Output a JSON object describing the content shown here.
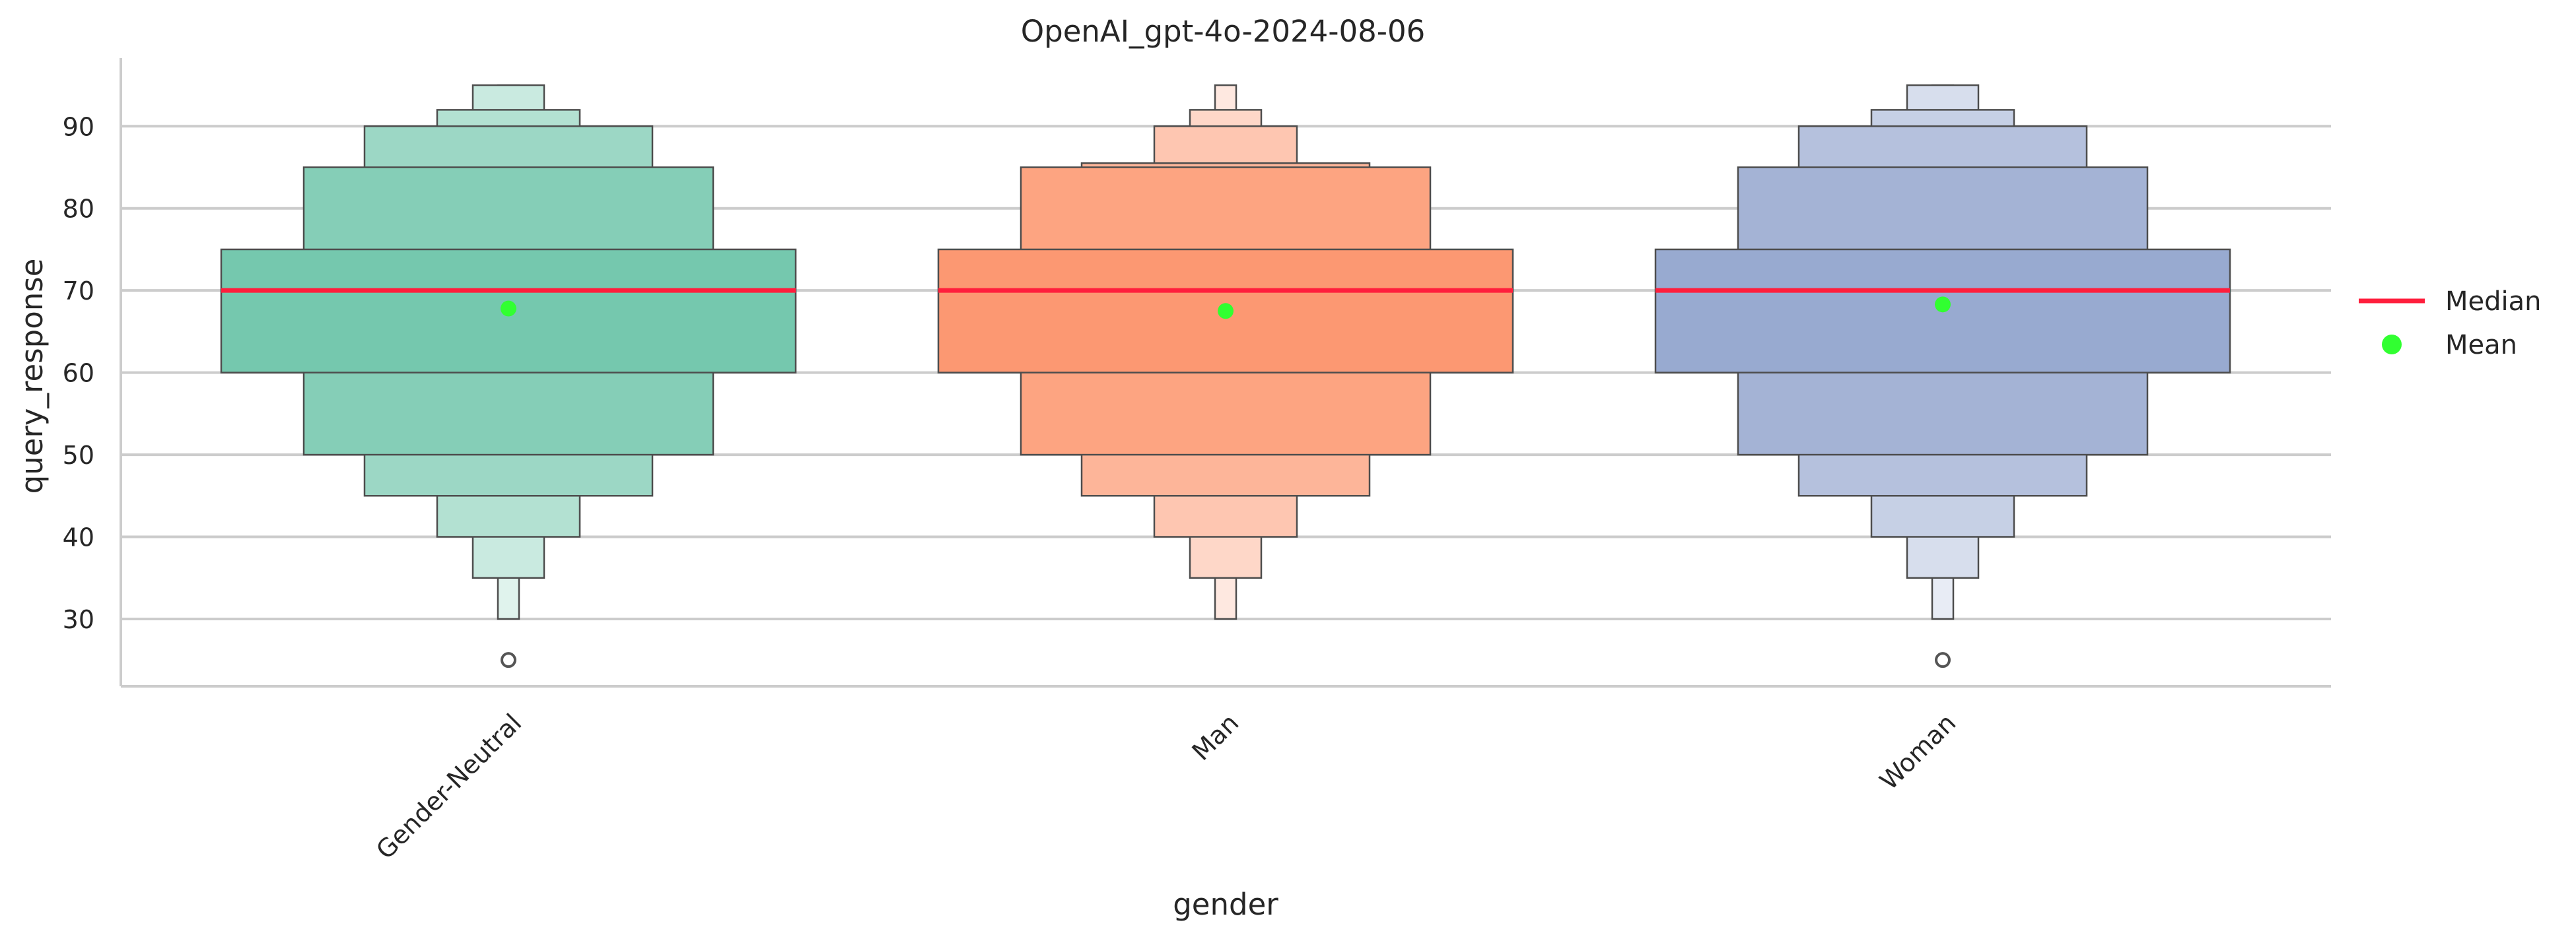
{
  "chart_data": {
    "type": "boxen",
    "title": "OpenAI_gpt-4o-2024-08-06",
    "xlabel": "gender",
    "ylabel": "query_response",
    "ylim": [
      21.8,
      98.3
    ],
    "yticks": [
      30,
      40,
      50,
      60,
      70,
      80,
      90
    ],
    "grid": "horizontal",
    "legend_position": "right",
    "categories": [
      "Gender-Neutral",
      "Man",
      "Woman"
    ],
    "colors": [
      "#66c2a5",
      "#fc8d62",
      "#8da0cb"
    ],
    "median_color": "#ff1e3c",
    "mean_color": "#31ff31",
    "series": [
      {
        "category": "Gender-Neutral",
        "median": 70,
        "mean": 67.8,
        "levels": [
          {
            "low": 60,
            "high": 75
          },
          {
            "low": 50,
            "high": 85
          },
          {
            "low": 45,
            "high": 90
          },
          {
            "low": 40,
            "high": 92
          },
          {
            "low": 35,
            "high": 95
          },
          {
            "low": 30,
            "high": 95
          }
        ],
        "outliers": [
          25
        ]
      },
      {
        "category": "Man",
        "median": 70,
        "mean": 67.5,
        "levels": [
          {
            "low": 60,
            "high": 75
          },
          {
            "low": 50,
            "high": 85
          },
          {
            "low": 45,
            "high": 85.5
          },
          {
            "low": 40,
            "high": 90
          },
          {
            "low": 35,
            "high": 92
          },
          {
            "low": 30,
            "high": 95
          }
        ],
        "outliers": []
      },
      {
        "category": "Woman",
        "median": 70,
        "mean": 68.3,
        "levels": [
          {
            "low": 60,
            "high": 75
          },
          {
            "low": 50,
            "high": 85
          },
          {
            "low": 45,
            "high": 90
          },
          {
            "low": 40,
            "high": 92
          },
          {
            "low": 35,
            "high": 95
          },
          {
            "low": 30,
            "high": 95
          }
        ],
        "outliers": [
          25
        ]
      }
    ],
    "legend": [
      {
        "label": "Median",
        "kind": "line",
        "color": "#ff1e3c"
      },
      {
        "label": "Mean",
        "kind": "dot",
        "color": "#31ff31"
      }
    ]
  }
}
